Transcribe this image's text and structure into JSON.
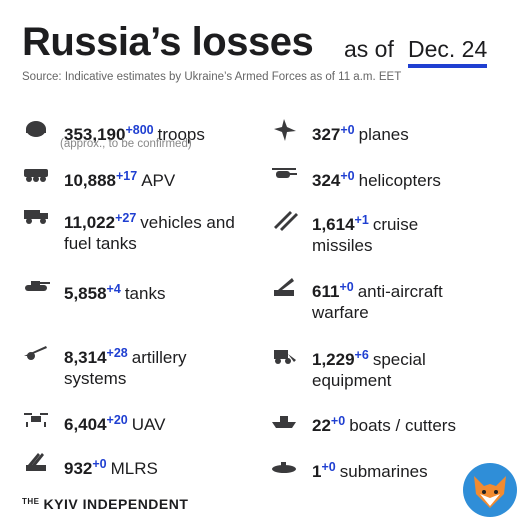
{
  "header": {
    "title": "Russia’s losses",
    "as_of": "as of",
    "date": "Dec. 24",
    "source": "Source: Indicative estimates by Ukraine’s Armed Forces as of 11 a.m. EET"
  },
  "left": [
    {
      "value": "353,190",
      "change": "+800",
      "label": "troops",
      "note": "(approx., to be confirmed)"
    },
    {
      "value": "10,888",
      "change": "+17",
      "label": "APV"
    },
    {
      "value": "11,022",
      "change": "+27",
      "label": "vehicles and",
      "label_cont": "fuel tanks"
    },
    {
      "value": "5,858",
      "change": "+4",
      "label": "tanks"
    },
    {
      "value": "8,314",
      "change": "+28",
      "label": "artillery",
      "label_cont": "systems"
    },
    {
      "value": "6,404",
      "change": "+20",
      "label": "UAV"
    },
    {
      "value": "932",
      "change": "+0",
      "label": "MLRS"
    }
  ],
  "right": [
    {
      "value": "327",
      "change": "+0",
      "label": "planes"
    },
    {
      "value": "324",
      "change": "+0",
      "label": "helicopters"
    },
    {
      "value": "1,614",
      "change": "+1",
      "label": "cruise",
      "label_cont": "missiles"
    },
    {
      "value": "611",
      "change": "+0",
      "label": "anti-aircraft",
      "label_cont": "warfare"
    },
    {
      "value": "1,229",
      "change": "+6",
      "label": "special",
      "label_cont": "equipment"
    },
    {
      "value": "22",
      "change": "+0",
      "label": "boats / cutters"
    },
    {
      "value": "1",
      "change": "+0",
      "label": "submarines"
    }
  ],
  "footer": {
    "brand_prefix": "THE",
    "brand": "KYIV INDEPENDENT"
  }
}
